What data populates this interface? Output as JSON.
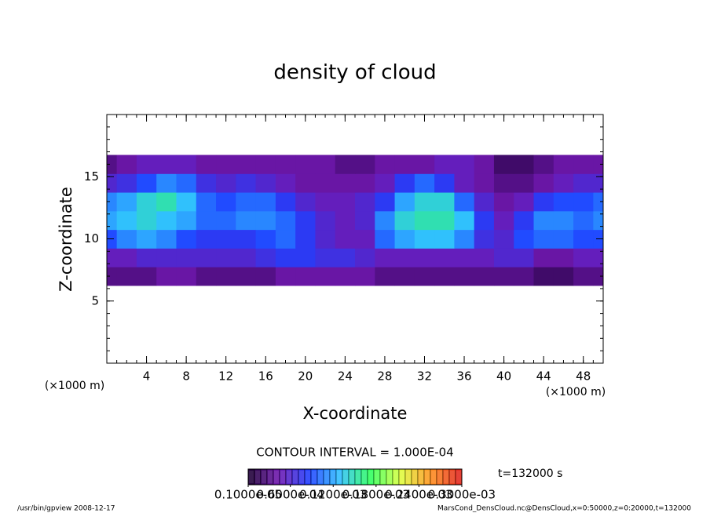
{
  "chart_data": {
    "type": "heatmap",
    "title": "density of cloud",
    "x_label": "X-coordinate",
    "y_label": "Z-coordinate",
    "x_unit_label": "(×1000 m)",
    "y_unit_label": "(×1000 m)",
    "xlim": [
      0,
      50
    ],
    "ylim": [
      0,
      20
    ],
    "xticks": [
      4,
      8,
      12,
      16,
      20,
      24,
      28,
      32,
      36,
      40,
      44,
      48
    ],
    "yticks": [
      5,
      10,
      15
    ],
    "x": [
      0,
      2,
      4,
      6,
      8,
      10,
      12,
      14,
      16,
      18,
      20,
      22,
      24,
      26,
      28,
      30,
      32,
      34,
      36,
      38,
      40,
      42,
      44,
      46,
      48,
      50
    ],
    "y": [
      7,
      8.5,
      10,
      11.5,
      13,
      14.5,
      16
    ],
    "values": [
      [
        3e-05,
        3e-05,
        3e-05,
        4e-05,
        4e-05,
        3e-05,
        3e-05,
        3e-05,
        3e-05,
        4e-05,
        4e-05,
        4e-05,
        4e-05,
        4e-05,
        3e-05,
        3e-05,
        3e-05,
        3e-05,
        3e-05,
        3e-05,
        3e-05,
        3e-05,
        2e-05,
        2e-05,
        3e-05,
        3e-05
      ],
      [
        5e-05,
        5e-05,
        6e-05,
        6e-05,
        6e-05,
        6e-05,
        6e-05,
        6e-05,
        7e-05,
        8e-05,
        8e-05,
        7e-05,
        7e-05,
        6e-05,
        5e-05,
        5e-05,
        5e-05,
        5e-05,
        5e-05,
        5e-05,
        6e-05,
        6e-05,
        4e-05,
        4e-05,
        5e-05,
        5e-05
      ],
      [
        9e-05,
        0.00011,
        0.00012,
        0.00011,
        9e-05,
        8e-05,
        8e-05,
        8e-05,
        9e-05,
        0.0001,
        8e-05,
        6e-05,
        5e-05,
        5e-05,
        0.0001,
        0.00012,
        0.00013,
        0.00013,
        0.00011,
        7e-05,
        6e-05,
        9e-05,
        0.0001,
        0.0001,
        9e-05,
        9e-05
      ],
      [
        0.00012,
        0.00013,
        0.00014,
        0.00013,
        0.00012,
        0.0001,
        0.0001,
        0.00011,
        0.00011,
        0.0001,
        8e-05,
        6e-05,
        5e-05,
        6e-05,
        0.00011,
        0.00014,
        0.00015,
        0.00015,
        0.00013,
        8e-05,
        5e-05,
        8e-05,
        0.00011,
        0.00011,
        0.0001,
        0.00011
      ],
      [
        0.00011,
        0.00012,
        0.00014,
        0.00015,
        0.00013,
        0.0001,
        9e-05,
        0.0001,
        0.0001,
        8e-05,
        6e-05,
        5e-05,
        5e-05,
        6e-05,
        8e-05,
        0.00012,
        0.00014,
        0.00014,
        0.0001,
        6e-05,
        4e-05,
        5e-05,
        8e-05,
        9e-05,
        9e-05,
        0.0001
      ],
      [
        6e-05,
        7e-05,
        9e-05,
        0.00011,
        0.0001,
        7e-05,
        6e-05,
        7e-05,
        6e-05,
        5e-05,
        4e-05,
        4e-05,
        4e-05,
        4e-05,
        5e-05,
        8e-05,
        0.0001,
        8e-05,
        5e-05,
        4e-05,
        3e-05,
        3e-05,
        4e-05,
        5e-05,
        6e-05,
        6e-05
      ],
      [
        3e-05,
        4e-05,
        5e-05,
        5e-05,
        5e-05,
        4e-05,
        4e-05,
        4e-05,
        4e-05,
        4e-05,
        4e-05,
        4e-05,
        3e-05,
        3e-05,
        4e-05,
        4e-05,
        4e-05,
        5e-05,
        5e-05,
        4e-05,
        2e-05,
        2e-05,
        3e-05,
        4e-05,
        4e-05,
        4e-05
      ]
    ],
    "colormap": [
      "#1a0030",
      "#7018b0",
      "#2040ff",
      "#30c0ff",
      "#30ff60",
      "#e0ff40",
      "#ff9020",
      "#e02020"
    ],
    "clim": [
      1e-06,
      0.0003
    ],
    "colorbar_ticks": [
      {
        "value": 1e-06,
        "label": "0.1000e-05"
      },
      {
        "value": 6e-05,
        "label": "0.6000e-04"
      },
      {
        "value": 0.00012,
        "label": "0.1200e-03"
      },
      {
        "value": 0.00018,
        "label": "0.1800e-03"
      },
      {
        "value": 0.00024,
        "label": "0.2400e-03"
      },
      {
        "value": 0.0003,
        "label": "0.3000e-03"
      }
    ],
    "contour_interval_text": "CONTOUR INTERVAL = 1.000E-04",
    "time_text": "t=132000 s",
    "footer_left": "/usr/bin/gpview   2008-12-17",
    "footer_right": "MarsCond_DensCloud.nc@DensCloud,x=0:50000,z=0:20000,t=132000"
  }
}
